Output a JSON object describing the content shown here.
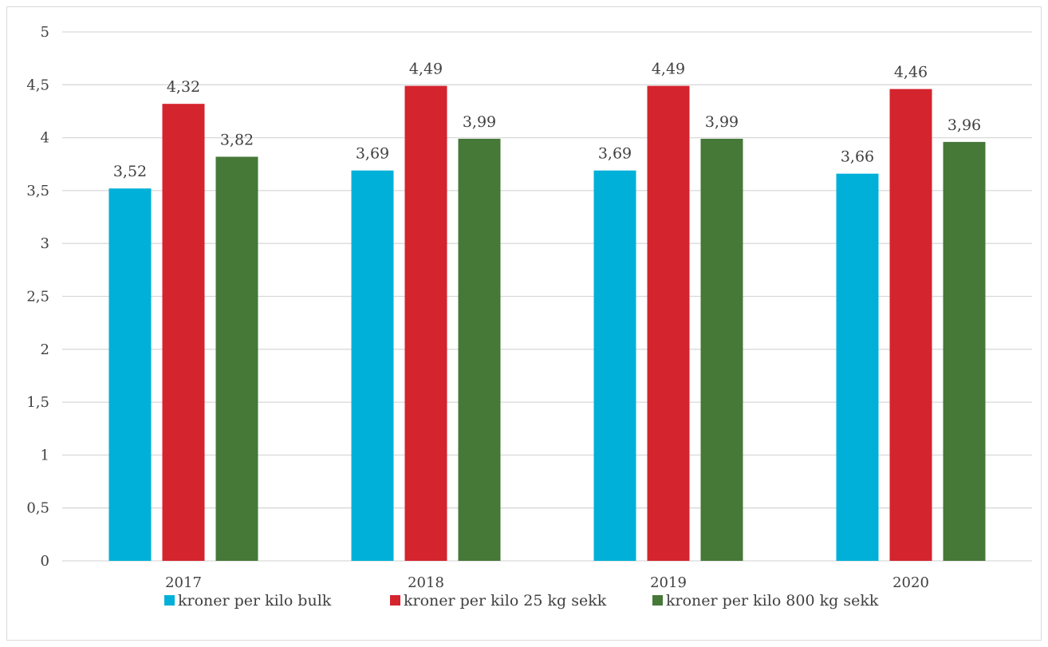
{
  "chart_data": {
    "type": "bar",
    "title": "",
    "xlabel": "",
    "ylabel": "",
    "categories": [
      "2017",
      "2018",
      "2019",
      "2020"
    ],
    "series": [
      {
        "name": "kroner per kilo bulk",
        "values": [
          3.52,
          3.69,
          3.69,
          3.66
        ],
        "labels": [
          "3,52",
          "3,69",
          "3,69",
          "3,66"
        ],
        "color": "#00b0d8"
      },
      {
        "name": "kroner per kilo 25 kg sekk",
        "values": [
          4.32,
          4.49,
          4.49,
          4.46
        ],
        "labels": [
          "4,32",
          "4,49",
          "4,49",
          "4,46"
        ],
        "color": "#d4242e"
      },
      {
        "name": "kroner per kilo 800 kg sekk",
        "values": [
          3.82,
          3.99,
          3.99,
          3.96
        ],
        "labels": [
          "3,82",
          "3,99",
          "3,99",
          "3,96"
        ],
        "color": "#467838"
      }
    ],
    "ylim": [
      0,
      5
    ],
    "yticks": [
      0,
      0.5,
      1,
      1.5,
      2,
      2.5,
      3,
      3.5,
      4,
      4.5,
      5
    ],
    "ytick_labels": [
      "0",
      "0,5",
      "1",
      "1,5",
      "2",
      "2,5",
      "3",
      "3,5",
      "4",
      "4,5",
      "5"
    ],
    "grid": true,
    "legend_position": "bottom",
    "gridline_color": "#d9d9d9"
  }
}
